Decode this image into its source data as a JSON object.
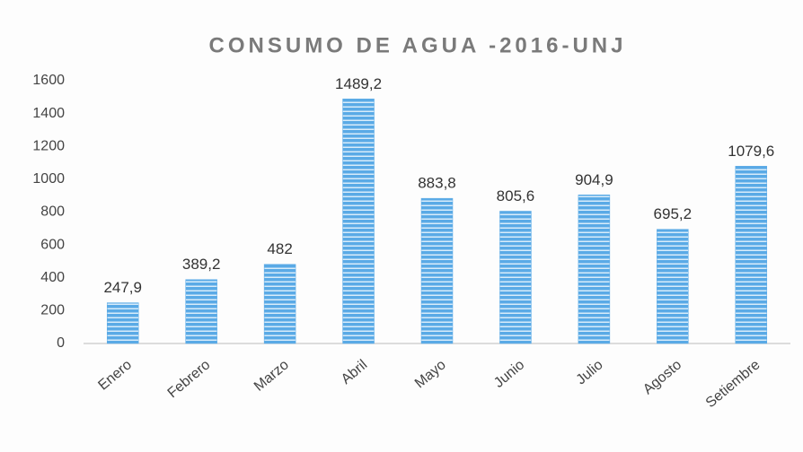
{
  "chart_data": {
    "type": "bar",
    "title": "CONSUMO DE AGUA -2016-UNJ",
    "categories": [
      "Enero",
      "Febrero",
      "Marzo",
      "Abril",
      "Mayo",
      "Junio",
      "Julio",
      "Agosto",
      "Setiembre"
    ],
    "values": [
      247.9,
      389.2,
      482,
      1489.2,
      883.8,
      805.6,
      904.9,
      695.2,
      1079.6
    ],
    "value_labels": [
      "247,9",
      "389,2",
      "482",
      "1489,2",
      "883,8",
      "805,6",
      "904,9",
      "695,2",
      "1079,6"
    ],
    "color": "#5aaae6",
    "ylim": [
      0,
      1600
    ],
    "yticks": [
      0,
      200,
      400,
      600,
      800,
      1000,
      1200,
      1400,
      1600
    ],
    "grid": false
  }
}
